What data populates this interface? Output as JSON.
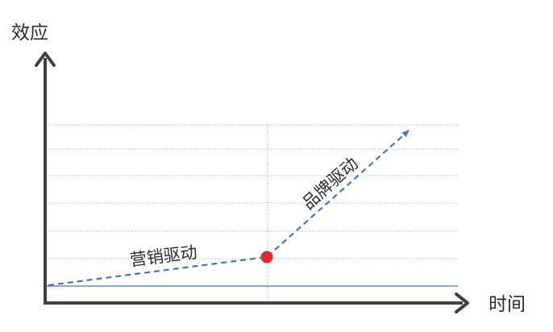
{
  "axes": {
    "y_label": "效应",
    "x_label": "时间"
  },
  "segments": {
    "marketing_label": "营销驱动",
    "brand_label": "品牌驱动"
  },
  "colors": {
    "axis": "#404040",
    "grid": "#a6a6a6",
    "baseline": "#4472c4",
    "dashed_line": "#4472c4",
    "turning_point": "#e8252a"
  }
}
